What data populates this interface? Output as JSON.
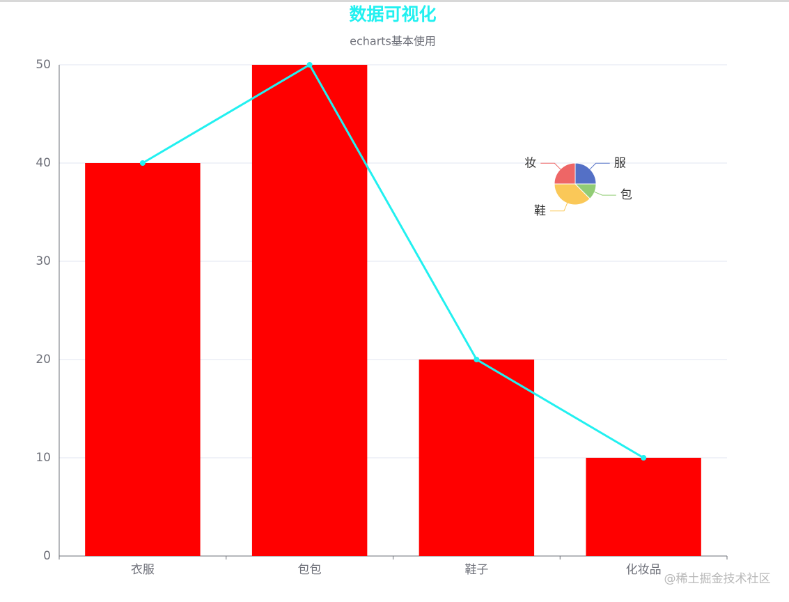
{
  "chart_data": [
    {
      "type": "bar",
      "title": "数据可视化",
      "subtitle": "echarts基本使用",
      "categories": [
        "衣服",
        "包包",
        "鞋子",
        "化妆品"
      ],
      "series": [
        {
          "type": "bar",
          "color": "#ff0000",
          "values": [
            40,
            50,
            20,
            10
          ]
        },
        {
          "type": "line",
          "color": "#22f0f0",
          "values": [
            40,
            50,
            20,
            10
          ]
        }
      ],
      "ylim": [
        0,
        50
      ],
      "yticks": [
        0,
        10,
        20,
        30,
        40,
        50
      ],
      "grid": true
    },
    {
      "type": "pie",
      "categories": [
        "服",
        "包",
        "鞋",
        "妆"
      ],
      "values": [
        10,
        5,
        15,
        10
      ],
      "colors": [
        "#5470c6",
        "#91cc75",
        "#fac858",
        "#ee6666"
      ]
    }
  ],
  "watermark": "@稀土掘金技术社区"
}
